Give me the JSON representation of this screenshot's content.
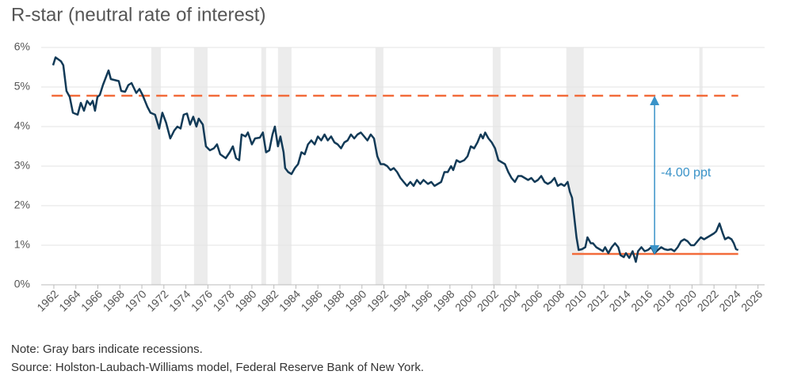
{
  "chart_data": {
    "type": "line",
    "title": "R-star (neutral rate of interest)",
    "notes": [
      "Note: Gray bars indicate recessions.",
      "Source: Holston-Laubach-Williams model, Federal Reserve Bank of New York."
    ],
    "xlim": [
      1960.85,
      2026.6
    ],
    "ylim": [
      0,
      6
    ],
    "xticks": [
      1962,
      1964,
      1966,
      1968,
      1970,
      1972,
      1974,
      1976,
      1978,
      1980,
      1982,
      1984,
      1986,
      1988,
      1990,
      1992,
      1994,
      1996,
      1998,
      2000,
      2002,
      2004,
      2006,
      2008,
      2010,
      2012,
      2014,
      2016,
      2018,
      2020,
      2022,
      2024,
      2026
    ],
    "yticks": [
      {
        "value": 0,
        "label": "0%"
      },
      {
        "value": 1,
        "label": "1%"
      },
      {
        "value": 2,
        "label": "2%"
      },
      {
        "value": 3,
        "label": "3%"
      },
      {
        "value": 4,
        "label": "4%"
      },
      {
        "value": 5,
        "label": "5%"
      },
      {
        "value": 6,
        "label": "6%"
      }
    ],
    "grid": true,
    "recession_color": "#ececec",
    "recessions": [
      [
        1970.86,
        1971.73
      ],
      [
        1974.74,
        1975.97
      ],
      [
        1980.86,
        1981.29
      ],
      [
        1982.37,
        1983.6
      ],
      [
        1991.23,
        1991.95
      ],
      [
        2001.89,
        2002.6
      ],
      [
        2008.58,
        2010.16
      ],
      [
        2020.67,
        2020.96
      ]
    ],
    "reference_lines": [
      {
        "value": 4.78,
        "x": [
          1961.8,
          2024.2
        ],
        "style": "dashed",
        "color": "#f26b3a"
      },
      {
        "value": 0.78,
        "x": [
          2009.1,
          2024.2
        ],
        "style": "solid",
        "color": "#f26b3a"
      }
    ],
    "annotation": {
      "text": "-4.00 ppt",
      "x": 2016.6,
      "from": 0.78,
      "to": 4.78,
      "color": "#3a93c8"
    },
    "series": [
      {
        "name": "R-star",
        "color": "#123a57",
        "x": [
          1961.93,
          1962.15,
          1962.65,
          1962.86,
          1963.15,
          1963.44,
          1963.73,
          1964.16,
          1964.45,
          1964.74,
          1965.02,
          1965.31,
          1965.53,
          1965.74,
          1965.96,
          1966.18,
          1966.46,
          1966.97,
          1967.18,
          1967.9,
          1968.12,
          1968.48,
          1968.77,
          1969.06,
          1969.49,
          1969.78,
          1970.06,
          1970.5,
          1970.78,
          1971.2,
          1971.57,
          1971.86,
          1972.2,
          1972.58,
          1972.94,
          1973.23,
          1973.52,
          1973.8,
          1974.1,
          1974.38,
          1974.67,
          1974.96,
          1975.17,
          1975.54,
          1975.82,
          1976.18,
          1976.54,
          1976.83,
          1977.12,
          1977.62,
          1977.98,
          1978.27,
          1978.56,
          1978.85,
          1979.06,
          1979.42,
          1979.64,
          1980.0,
          1980.29,
          1980.72,
          1981.0,
          1981.29,
          1981.58,
          1981.87,
          1982.09,
          1982.37,
          1982.59,
          1982.88,
          1983.02,
          1983.3,
          1983.6,
          1983.9,
          1984.2,
          1984.5,
          1984.8,
          1985.1,
          1985.4,
          1985.7,
          1986.0,
          1986.3,
          1986.6,
          1986.9,
          1987.2,
          1987.5,
          1987.8,
          1988.1,
          1988.4,
          1988.7,
          1989.0,
          1989.3,
          1989.6,
          1989.9,
          1990.2,
          1990.5,
          1990.8,
          1991.1,
          1991.4,
          1991.7,
          1992.0,
          1992.3,
          1992.6,
          1992.9,
          1993.2,
          1993.5,
          1993.8,
          1994.1,
          1994.4,
          1994.7,
          1995.0,
          1995.3,
          1995.6,
          1996.0,
          1996.3,
          1996.6,
          1996.9,
          1997.2,
          1997.5,
          1997.8,
          1998.1,
          1998.3,
          1998.6,
          1998.9,
          1999.3,
          1999.6,
          1999.9,
          2000.2,
          2000.5,
          2000.8,
          2001.0,
          2001.2,
          2001.5,
          2001.8,
          2002.1,
          2002.4,
          2002.7,
          2003.0,
          2003.3,
          2003.6,
          2003.9,
          2004.2,
          2004.5,
          2004.8,
          2005.1,
          2005.4,
          2005.7,
          2006.0,
          2006.3,
          2006.6,
          2006.9,
          2007.2,
          2007.5,
          2007.8,
          2008.1,
          2008.4,
          2008.7,
          2008.9,
          2009.1,
          2009.3,
          2009.5,
          2009.7,
          2010.0,
          2010.3,
          2010.5,
          2010.8,
          2011.0,
          2011.3,
          2011.6,
          2011.9,
          2012.1,
          2012.4,
          2012.7,
          2013.0,
          2013.3,
          2013.5,
          2013.8,
          2014.0,
          2014.3,
          2014.6,
          2014.9,
          2015.1,
          2015.4,
          2015.7,
          2016.0,
          2016.3,
          2016.6,
          2016.9,
          2017.2,
          2017.5,
          2017.8,
          2018.1,
          2018.4,
          2018.7,
          2019.0,
          2019.3,
          2019.6,
          2019.9,
          2020.2,
          2020.5,
          2020.8,
          2021.1,
          2021.4,
          2021.7,
          2022.0,
          2022.2,
          2022.5,
          2022.8,
          2023.0,
          2023.3,
          2023.6,
          2023.8,
          2024.0,
          2024.2
        ],
        "values": [
          5.55,
          5.75,
          5.65,
          5.55,
          4.9,
          4.75,
          4.35,
          4.3,
          4.6,
          4.4,
          4.65,
          4.55,
          4.65,
          4.4,
          4.75,
          4.8,
          5.05,
          5.42,
          5.2,
          5.15,
          4.9,
          4.88,
          5.05,
          5.1,
          4.85,
          4.95,
          4.8,
          4.5,
          4.35,
          4.3,
          3.95,
          4.35,
          4.1,
          3.7,
          3.9,
          4.0,
          3.95,
          4.3,
          4.33,
          4.05,
          4.25,
          4.0,
          4.2,
          4.05,
          3.5,
          3.4,
          3.45,
          3.55,
          3.3,
          3.2,
          3.35,
          3.5,
          3.2,
          3.15,
          3.8,
          3.75,
          3.85,
          3.55,
          3.7,
          3.72,
          3.85,
          3.35,
          3.4,
          3.8,
          4.0,
          3.5,
          3.75,
          3.35,
          2.95,
          2.85,
          2.8,
          2.95,
          3.05,
          3.35,
          3.3,
          3.55,
          3.65,
          3.55,
          3.75,
          3.65,
          3.8,
          3.65,
          3.75,
          3.6,
          3.55,
          3.45,
          3.6,
          3.65,
          3.8,
          3.7,
          3.8,
          3.85,
          3.75,
          3.65,
          3.8,
          3.7,
          3.25,
          3.05,
          3.05,
          3.0,
          2.9,
          2.95,
          2.85,
          2.7,
          2.6,
          2.5,
          2.6,
          2.5,
          2.65,
          2.55,
          2.65,
          2.55,
          2.6,
          2.5,
          2.55,
          2.6,
          2.85,
          2.85,
          3.0,
          2.9,
          3.15,
          3.1,
          3.15,
          3.25,
          3.5,
          3.45,
          3.6,
          3.8,
          3.7,
          3.85,
          3.7,
          3.6,
          3.45,
          3.15,
          3.1,
          3.05,
          2.85,
          2.7,
          2.6,
          2.75,
          2.75,
          2.7,
          2.65,
          2.7,
          2.6,
          2.65,
          2.75,
          2.6,
          2.55,
          2.6,
          2.7,
          2.5,
          2.55,
          2.5,
          2.6,
          2.35,
          2.2,
          1.7,
          1.2,
          0.88,
          0.9,
          0.95,
          1.2,
          1.05,
          1.05,
          0.95,
          0.9,
          0.85,
          0.95,
          0.8,
          0.95,
          1.05,
          0.95,
          0.75,
          0.7,
          0.8,
          0.68,
          0.85,
          0.58,
          0.85,
          0.95,
          0.85,
          0.88,
          0.95,
          0.8,
          0.88,
          0.95,
          0.9,
          0.88,
          0.9,
          0.85,
          0.95,
          1.1,
          1.15,
          1.1,
          1.0,
          1.0,
          1.1,
          1.2,
          1.15,
          1.2,
          1.25,
          1.3,
          1.35,
          1.55,
          1.3,
          1.15,
          1.2,
          1.15,
          1.05,
          0.9,
          0.88
        ]
      }
    ]
  }
}
